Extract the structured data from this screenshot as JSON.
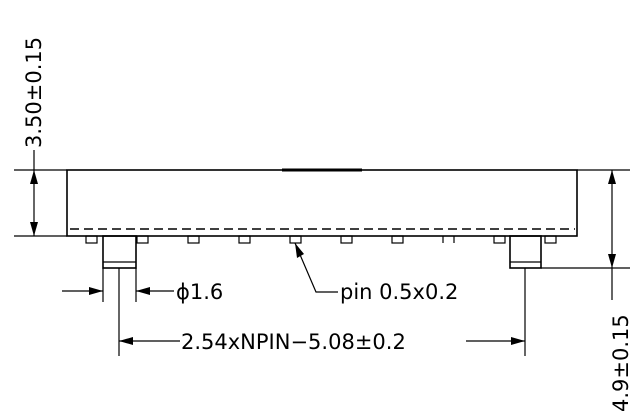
{
  "dimensions": {
    "height_label": "3.50±0.15",
    "pin_diameter_label": "ϕ1.6",
    "pin_size_label": "pin 0.5x0.2",
    "pitch_label": "2.54xNPIN−5.08±0.2",
    "pin_length_label": "4.9±0.15"
  }
}
